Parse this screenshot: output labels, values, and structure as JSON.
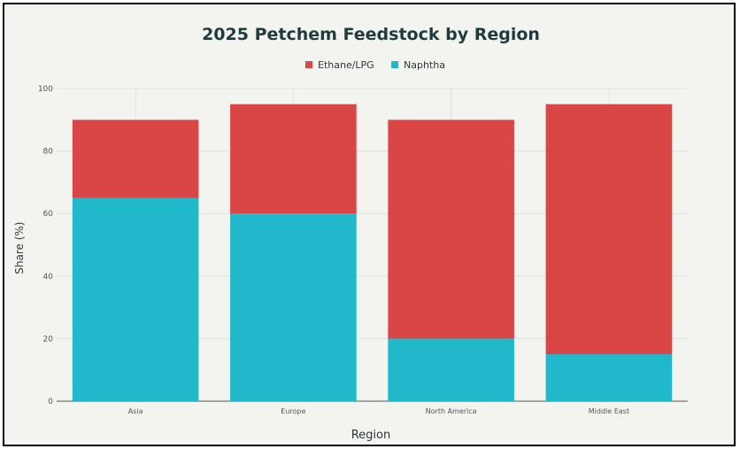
{
  "chart_data": {
    "type": "bar",
    "stacked": true,
    "title": "2025 Petchem Feedstock by Region",
    "xlabel": "Region",
    "ylabel": "Share (%)",
    "categories": [
      "Asia",
      "Europe",
      "North America",
      "Middle East"
    ],
    "series": [
      {
        "name": "Naphtha",
        "values": [
          65,
          60,
          20,
          15
        ],
        "color": "#22b8cc"
      },
      {
        "name": "Ethane/LPG",
        "values": [
          25,
          35,
          70,
          80
        ],
        "color": "#da4646"
      }
    ],
    "legend_order": [
      "Ethane/LPG",
      "Naphtha"
    ],
    "legend_position": "top",
    "ylim": [
      0,
      100
    ],
    "yticks": [
      0,
      20,
      40,
      60,
      80,
      100
    ],
    "grid": true
  }
}
